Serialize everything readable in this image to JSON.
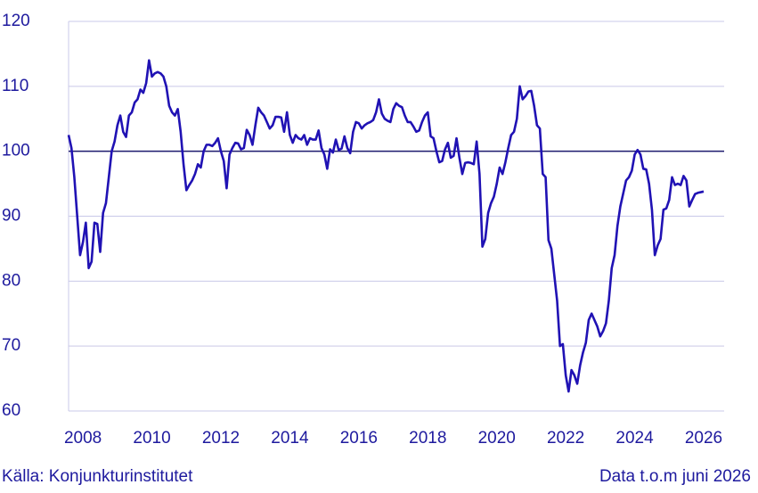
{
  "chart_data": {
    "type": "line",
    "source": "Källa: Konjunkturinstitutet",
    "note": "Data t.o.m juni 2026",
    "categories": [
      null,
      null,
      null,
      null,
      null,
      "2008",
      null,
      null,
      null,
      null,
      null,
      null,
      null,
      null,
      null,
      null,
      null,
      null,
      null,
      null,
      null,
      null,
      null,
      null,
      null,
      null,
      null,
      null,
      null,
      "2010",
      null,
      null,
      null,
      null,
      null,
      null,
      null,
      null,
      null,
      null,
      null,
      null,
      null,
      null,
      null,
      null,
      null,
      null,
      null,
      null,
      null,
      null,
      null,
      "2012",
      null,
      null,
      null,
      null,
      null,
      null,
      null,
      null,
      null,
      null,
      null,
      null,
      null,
      null,
      null,
      null,
      null,
      null,
      null,
      null,
      null,
      null,
      null,
      "2014",
      null,
      null,
      null,
      null,
      null,
      null,
      null,
      null,
      null,
      null,
      null,
      null,
      null,
      null,
      null,
      null,
      null,
      null,
      null,
      null,
      null,
      null,
      null,
      "2016",
      null,
      null,
      null,
      null,
      null,
      null,
      null,
      null,
      null,
      null,
      null,
      null,
      null,
      null,
      null,
      null,
      null,
      null,
      null,
      null,
      null,
      null,
      null,
      "2018",
      null,
      null,
      null,
      null,
      null,
      null,
      null,
      null,
      null,
      null,
      null,
      null,
      null,
      null,
      null,
      null,
      null,
      null,
      null,
      null,
      null,
      null,
      null,
      "2020",
      null,
      null,
      null,
      null,
      null,
      null,
      null,
      null,
      null,
      null,
      null,
      null,
      null,
      null,
      null,
      null,
      null,
      null,
      null,
      null,
      null,
      null,
      null,
      "2022",
      null,
      null,
      null,
      null,
      null,
      null,
      null,
      null,
      null,
      null,
      null,
      null,
      null,
      null,
      null,
      null,
      null,
      null,
      null,
      null,
      null,
      null,
      null,
      "2024",
      null,
      null,
      null,
      null,
      null,
      null,
      null,
      null,
      null,
      null,
      null,
      null,
      null,
      null,
      null,
      null,
      null,
      null,
      null,
      null,
      null,
      null,
      null,
      "2026"
    ],
    "series": [
      {
        "color": "#2012b4",
        "values": [
          102.5,
          100.5,
          96,
          90,
          84,
          86,
          89,
          82,
          83,
          89,
          88.8,
          84.5,
          90.5,
          92,
          96,
          100,
          101.5,
          104,
          105.5,
          103,
          102.2,
          105.5,
          106,
          107.5,
          108,
          109.5,
          109,
          110.5,
          114,
          111.5,
          112,
          112.2,
          112,
          111.5,
          110,
          107,
          106,
          105.5,
          106.5,
          103,
          98,
          94,
          94.8,
          95.5,
          96.5,
          98,
          97.5,
          100,
          101,
          101,
          100.8,
          101.3,
          102,
          100,
          98.5,
          94.3,
          99.5,
          100.5,
          101.3,
          101.2,
          100.3,
          100.5,
          103.3,
          102.5,
          101,
          104,
          106.7,
          106,
          105.5,
          104.5,
          103.5,
          104,
          105.3,
          105.3,
          105.2,
          103,
          106,
          102.5,
          101.3,
          102.5,
          102,
          101.8,
          102.5,
          101,
          102,
          101.8,
          101.8,
          103.2,
          100.5,
          99.5,
          97.3,
          100.3,
          99.8,
          101.8,
          100.2,
          100.4,
          102.3,
          100.5,
          99.7,
          103,
          104.5,
          104.3,
          103.5,
          104,
          104.3,
          104.5,
          104.8,
          106,
          108,
          105.8,
          105,
          104.7,
          104.5,
          106.5,
          107.4,
          107,
          106.8,
          105.5,
          104.5,
          104.5,
          103.8,
          103,
          103.2,
          104.5,
          105.5,
          106,
          102.3,
          102,
          100,
          98.3,
          98.5,
          100.3,
          101.3,
          99,
          99.3,
          102,
          99,
          96.5,
          98.2,
          98.3,
          98.2,
          98,
          101.5,
          96.5,
          85.3,
          86.5,
          90.5,
          92,
          93,
          95,
          97.5,
          96.5,
          98.3,
          100.5,
          102.5,
          103,
          105,
          110,
          108,
          108.5,
          109.2,
          109.3,
          107,
          104,
          103.5,
          96.5,
          96,
          86.3,
          85,
          81,
          77,
          70,
          70.3,
          65.5,
          63,
          66.3,
          65.5,
          64.2,
          67,
          69,
          70.5,
          74,
          75,
          74,
          73,
          71.5,
          72.3,
          73.5,
          77,
          82,
          84,
          88.5,
          91.5,
          93.5,
          95.5,
          96,
          97,
          99.5,
          100.2,
          99.5,
          97.3,
          97.2,
          95,
          91,
          84,
          85.5,
          86.5,
          91,
          91.2,
          92.5,
          96,
          94.8,
          95,
          94.8,
          96.2,
          95.5,
          91.5,
          92.5,
          93.4,
          93.6,
          93.7,
          93.8
        ]
      }
    ],
    "ylim": [
      60,
      120
    ],
    "yticks": [
      60,
      70,
      80,
      90,
      100,
      110,
      120
    ],
    "grid": true,
    "reference_line": 100
  }
}
